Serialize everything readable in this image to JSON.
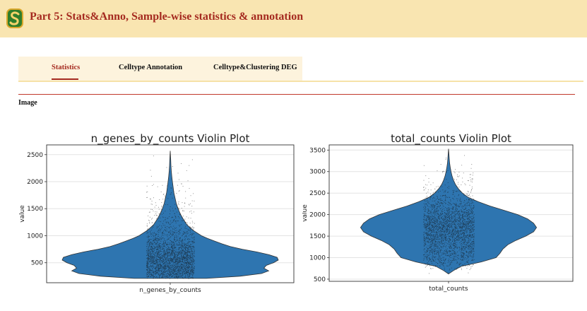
{
  "header": {
    "title": "Part 5: Stats&Anno, Sample-wise statistics & annotation",
    "logo_icon": "s-logo-icon",
    "bg": "#f9e5b1",
    "accent": "#a52a1f"
  },
  "tabs": [
    {
      "label": "Statistics",
      "active": true
    },
    {
      "label": "Celltype Annotation",
      "active": false
    },
    {
      "label": "Celltype&Clustering DEG",
      "active": false
    }
  ],
  "section": {
    "label": "Image"
  },
  "chart_data": [
    {
      "type": "violin",
      "title": "n_genes_by_counts Violin Plot",
      "xlabel": "",
      "ylabel": "value",
      "categories": [
        "n_genes_by_counts"
      ],
      "ylim": [
        130,
        2680
      ],
      "yticks": [
        500,
        1000,
        1500,
        2000,
        2500
      ],
      "grid": true,
      "color": "#2e75b0",
      "range": [
        210,
        2570
      ],
      "profile": [
        [
          210,
          0.3
        ],
        [
          250,
          0.58
        ],
        [
          300,
          0.76
        ],
        [
          350,
          0.82
        ],
        [
          400,
          0.78
        ],
        [
          450,
          0.8
        ],
        [
          500,
          0.86
        ],
        [
          550,
          0.9
        ],
        [
          600,
          0.89
        ],
        [
          650,
          0.82
        ],
        [
          700,
          0.72
        ],
        [
          750,
          0.6
        ],
        [
          800,
          0.5
        ],
        [
          850,
          0.43
        ],
        [
          900,
          0.37
        ],
        [
          950,
          0.31
        ],
        [
          1000,
          0.26
        ],
        [
          1100,
          0.19
        ],
        [
          1200,
          0.14
        ],
        [
          1300,
          0.11
        ],
        [
          1400,
          0.085
        ],
        [
          1500,
          0.065
        ],
        [
          1600,
          0.05
        ],
        [
          1700,
          0.04
        ],
        [
          1800,
          0.03
        ],
        [
          1900,
          0.024
        ],
        [
          2000,
          0.018
        ],
        [
          2100,
          0.013
        ],
        [
          2200,
          0.009
        ],
        [
          2300,
          0.006
        ],
        [
          2400,
          0.004
        ],
        [
          2500,
          0.002
        ],
        [
          2570,
          0.0
        ]
      ]
    },
    {
      "type": "violin",
      "title": "total_counts Violin Plot",
      "xlabel": "",
      "ylabel": "value",
      "categories": [
        "total_counts"
      ],
      "ylim": [
        450,
        3620
      ],
      "yticks": [
        500,
        1000,
        1500,
        2000,
        2500,
        3000,
        3500
      ],
      "grid": true,
      "color": "#2e75b0",
      "range": [
        620,
        3530
      ],
      "profile": [
        [
          620,
          0.0
        ],
        [
          700,
          0.05
        ],
        [
          800,
          0.13
        ],
        [
          900,
          0.33
        ],
        [
          1000,
          0.48
        ],
        [
          1100,
          0.52
        ],
        [
          1200,
          0.55
        ],
        [
          1300,
          0.6
        ],
        [
          1400,
          0.68
        ],
        [
          1500,
          0.78
        ],
        [
          1600,
          0.86
        ],
        [
          1700,
          0.89
        ],
        [
          1800,
          0.86
        ],
        [
          1900,
          0.8
        ],
        [
          2000,
          0.7
        ],
        [
          2100,
          0.56
        ],
        [
          2200,
          0.42
        ],
        [
          2300,
          0.3
        ],
        [
          2400,
          0.2
        ],
        [
          2500,
          0.14
        ],
        [
          2600,
          0.1
        ],
        [
          2700,
          0.07
        ],
        [
          2800,
          0.05
        ],
        [
          2900,
          0.035
        ],
        [
          3000,
          0.025
        ],
        [
          3100,
          0.017
        ],
        [
          3200,
          0.011
        ],
        [
          3300,
          0.007
        ],
        [
          3400,
          0.004
        ],
        [
          3530,
          0.0
        ]
      ]
    }
  ]
}
